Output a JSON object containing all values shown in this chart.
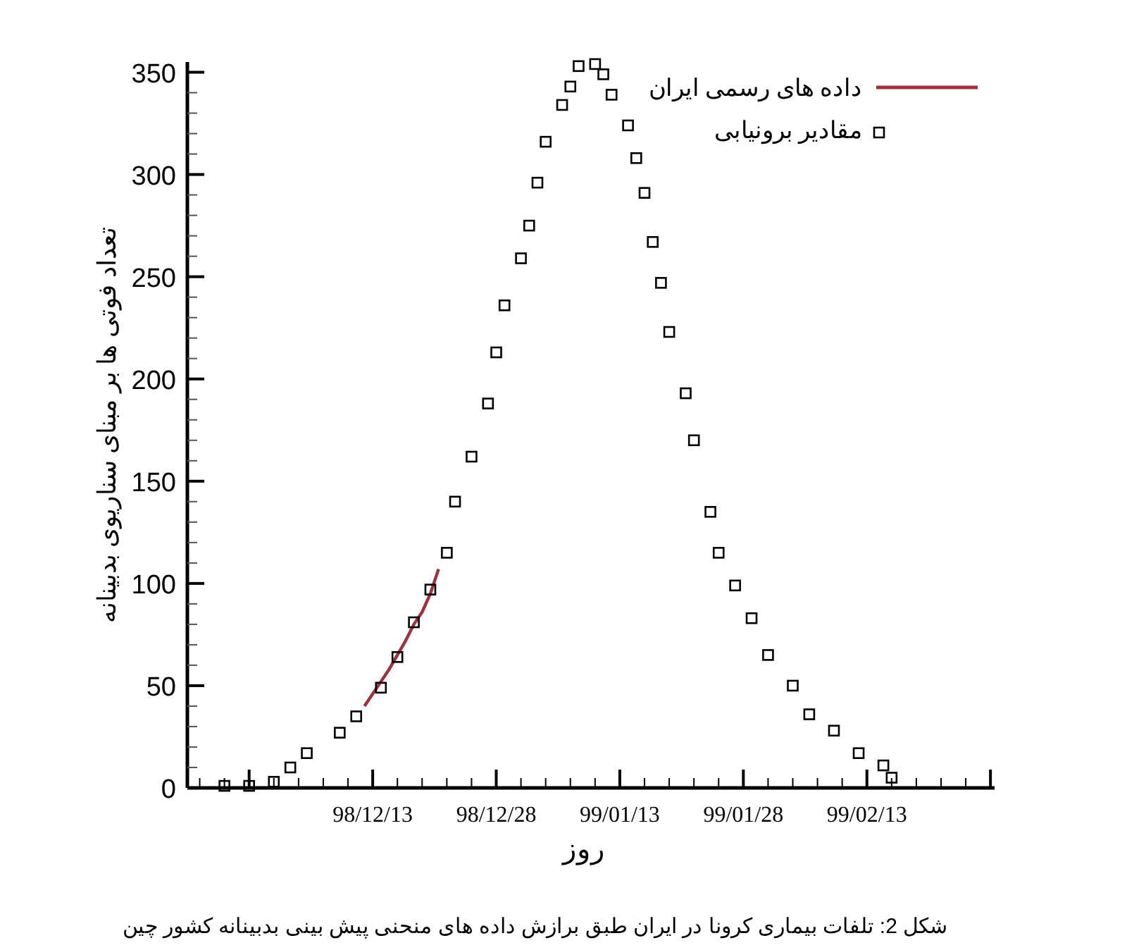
{
  "chart_data": {
    "type": "scatter",
    "xlabel": "روز",
    "ylabel": "تعداد فوتی ها بر مبنای سناریوی بدبینانه",
    "annotations": [
      "شکل 2: تلفات بیماری کرونا در ایران طبق برازش داده های منحنی پیش بینی بدبینانه کشور چین"
    ],
    "categories": [
      null,
      null,
      null,
      null,
      null,
      null,
      null,
      null,
      null,
      null,
      null,
      null,
      null,
      null,
      null,
      null,
      null,
      null,
      null,
      null,
      null,
      null,
      "98/12/13",
      null,
      null,
      null,
      null,
      null,
      null,
      null,
      null,
      null,
      null,
      null,
      null,
      null,
      null,
      "98/12/28",
      null,
      null,
      null,
      null,
      null,
      null,
      null,
      null,
      null,
      null,
      null,
      null,
      null,
      null,
      "99/01/13",
      null,
      null,
      null,
      null,
      null,
      null,
      null,
      null,
      null,
      null,
      null,
      null,
      null,
      null,
      "99/01/28",
      null,
      null,
      null,
      null,
      null,
      null,
      null,
      null,
      null,
      null,
      null,
      null,
      null,
      null,
      "99/02/13",
      null,
      null,
      null,
      null,
      null,
      null,
      null,
      null,
      null,
      null,
      null,
      null,
      null,
      null,
      null
    ],
    "ylim": [
      0,
      355
    ],
    "yticks": [
      0,
      {
        "value": 10,
        "label": null
      },
      {
        "value": 20,
        "label": null
      },
      {
        "value": 30,
        "label": null
      },
      {
        "value": 40,
        "label": null
      },
      50,
      {
        "value": 60,
        "label": null
      },
      {
        "value": 70,
        "label": null
      },
      {
        "value": 80,
        "label": null
      },
      {
        "value": 90,
        "label": null
      },
      100,
      {
        "value": 110,
        "label": null
      },
      {
        "value": 120,
        "label": null
      },
      {
        "value": 130,
        "label": null
      },
      {
        "value": 140,
        "label": null
      },
      150,
      {
        "value": 160,
        "label": null
      },
      {
        "value": 170,
        "label": null
      },
      {
        "value": 180,
        "label": null
      },
      {
        "value": 190,
        "label": null
      },
      200,
      {
        "value": 210,
        "label": null
      },
      {
        "value": 220,
        "label": null
      },
      {
        "value": 230,
        "label": null
      },
      {
        "value": 240,
        "label": null
      },
      250,
      {
        "value": 260,
        "label": null
      },
      {
        "value": 270,
        "label": null
      },
      {
        "value": 280,
        "label": null
      },
      {
        "value": 290,
        "label": null
      },
      300,
      {
        "value": 310,
        "label": null
      },
      {
        "value": 320,
        "label": null
      },
      {
        "value": 330,
        "label": null
      },
      {
        "value": 340,
        "label": null
      },
      350
    ],
    "grid": false,
    "legend": "top right",
    "series": [
      {
        "name": "داده های رسمی ایران",
        "type": "line",
        "line_style": "solid",
        "marker": "none",
        "color": "#a0303a",
        "values": [
          null,
          null,
          null,
          null,
          null,
          null,
          null,
          null,
          null,
          null,
          null,
          null,
          null,
          null,
          null,
          null,
          null,
          null,
          null,
          null,
          null,
          40,
          46,
          52,
          58,
          65,
          72,
          80,
          86,
          95,
          107,
          null,
          null,
          null,
          null,
          null,
          null,
          null,
          null,
          null,
          null,
          null,
          null,
          null,
          null,
          null,
          null,
          null,
          null,
          null,
          null,
          null,
          null,
          null,
          null,
          null,
          null,
          null,
          null,
          null,
          null,
          null,
          null,
          null,
          null,
          null,
          null,
          null,
          null,
          null,
          null,
          null,
          null,
          null,
          null,
          null,
          null,
          null,
          null,
          null,
          null,
          null,
          null,
          null,
          null,
          null,
          null,
          null,
          null,
          null,
          null,
          null,
          null,
          null,
          null,
          null,
          null,
          null
        ]
      },
      {
        "name": "مقادیر برونیابی",
        "marker": "square",
        "color": "#000000",
        "values": [
          null,
          null,
          null,
          null,
          1,
          null,
          null,
          1,
          null,
          null,
          3,
          null,
          10,
          null,
          17,
          null,
          null,
          null,
          27,
          null,
          35,
          null,
          null,
          49,
          null,
          64,
          null,
          81,
          null,
          97,
          null,
          115,
          140,
          null,
          162,
          null,
          188,
          213,
          236,
          null,
          259,
          275,
          296,
          316,
          null,
          334,
          343,
          353,
          null,
          354,
          349,
          339,
          null,
          324,
          308,
          291,
          267,
          247,
          223,
          null,
          193,
          170,
          null,
          135,
          115,
          null,
          99,
          null,
          83,
          null,
          65,
          null,
          null,
          50,
          null,
          36,
          null,
          null,
          28,
          null,
          null,
          17,
          null,
          null,
          11,
          5,
          null,
          null,
          null,
          null,
          null,
          null,
          null,
          null,
          null,
          null,
          null,
          null
        ]
      }
    ]
  }
}
